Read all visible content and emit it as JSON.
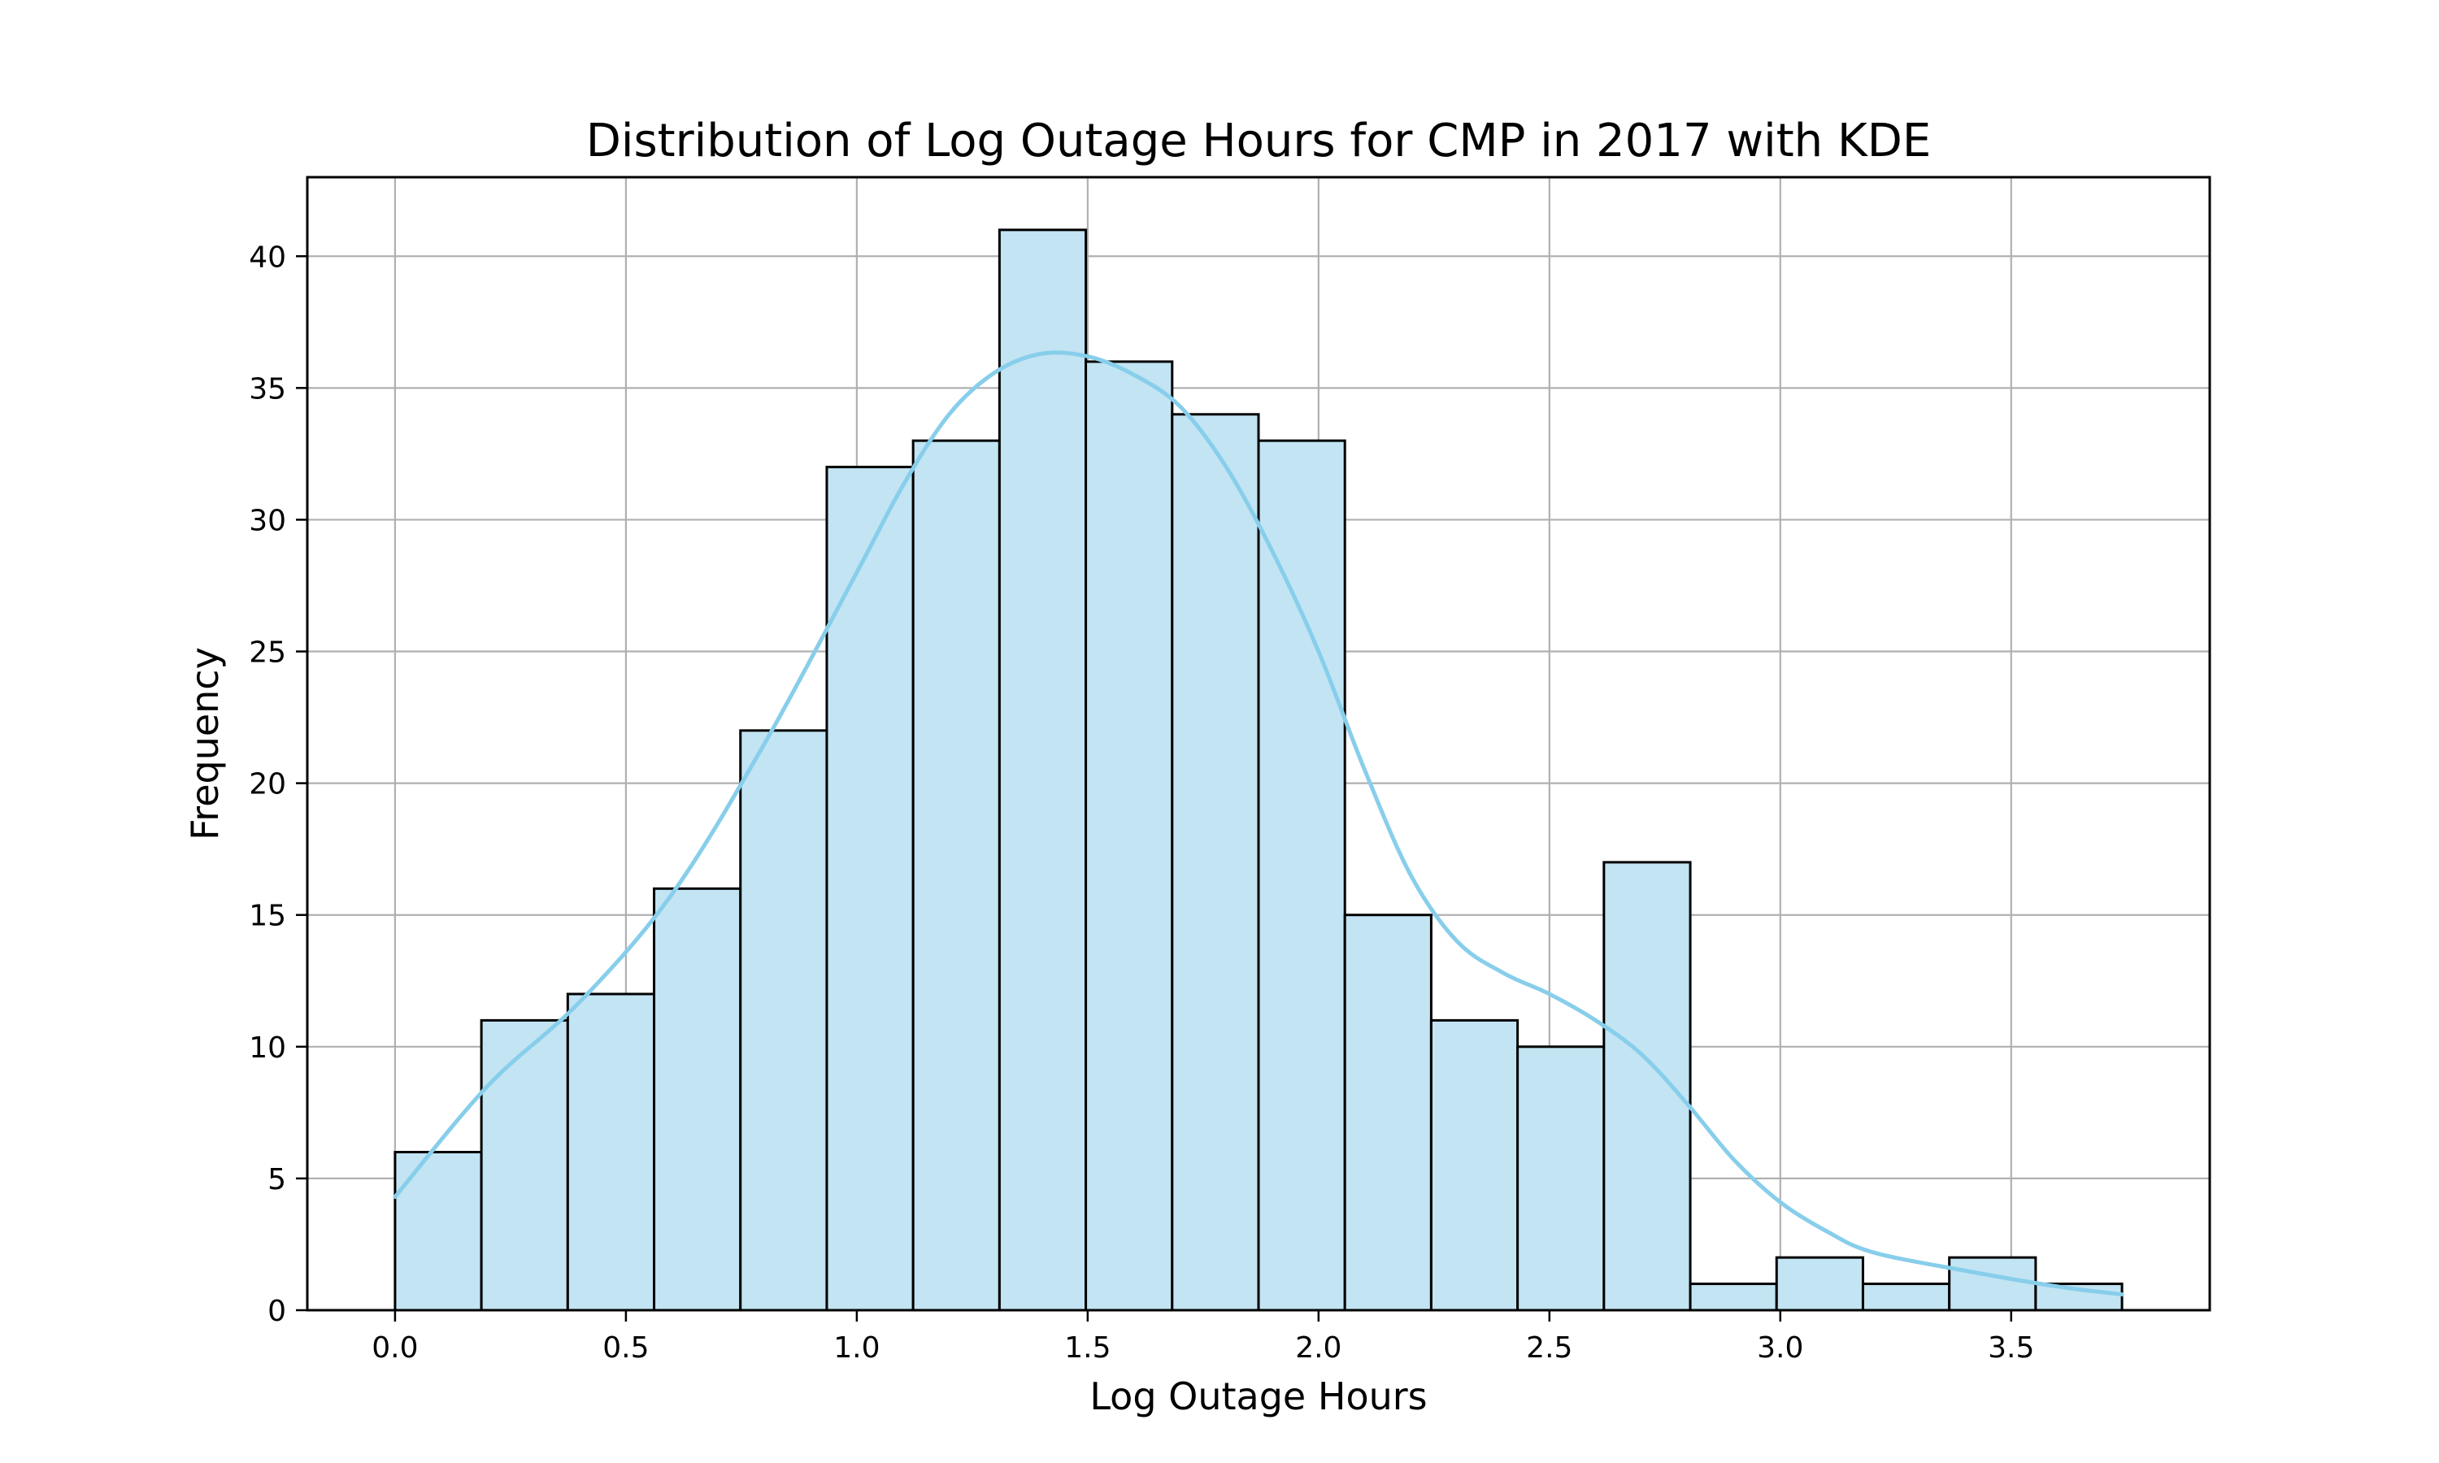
{
  "chart_data": {
    "type": "bar",
    "title": "Distribution of Log Outage Hours for CMP in 2017 with KDE",
    "xlabel": "Log Outage Hours",
    "ylabel": "Frequency",
    "xlim": [
      -0.19,
      3.93
    ],
    "ylim": [
      0,
      43
    ],
    "grid": true,
    "xticks": [
      "0.0",
      "0.5",
      "1.0",
      "1.5",
      "2.0",
      "2.5",
      "3.0",
      "3.5"
    ],
    "xtick_values": [
      0.0,
      0.5,
      1.0,
      1.5,
      2.0,
      2.5,
      3.0,
      3.5
    ],
    "yticks": [
      "0",
      "5",
      "10",
      "15",
      "20",
      "25",
      "30",
      "35",
      "40"
    ],
    "ytick_values": [
      0,
      5,
      10,
      15,
      20,
      25,
      30,
      35,
      40
    ],
    "bins": {
      "edges": [
        0.0,
        0.187,
        0.374,
        0.561,
        0.748,
        0.935,
        1.122,
        1.309,
        1.496,
        1.683,
        1.87,
        2.057,
        2.244,
        2.431,
        2.618,
        2.805,
        2.992,
        3.179,
        3.366,
        3.553,
        3.74
      ],
      "counts": [
        6,
        11,
        12,
        16,
        22,
        32,
        33,
        41,
        36,
        34,
        33,
        15,
        11,
        10,
        17,
        1,
        2,
        1,
        2,
        1
      ]
    },
    "kde": {
      "x": [
        0.0,
        0.2,
        0.4,
        0.6,
        0.8,
        1.0,
        1.1,
        1.2,
        1.3,
        1.4,
        1.5,
        1.6,
        1.7,
        1.8,
        1.9,
        2.0,
        2.1,
        2.2,
        2.3,
        2.4,
        2.5,
        2.6,
        2.7,
        2.8,
        2.9,
        3.0,
        3.1,
        3.2,
        3.4,
        3.6,
        3.74
      ],
      "y": [
        4.3,
        8.5,
        11.7,
        15.8,
        21.5,
        28.0,
        31.3,
        34.0,
        35.6,
        36.3,
        36.2,
        35.5,
        34.3,
        32.0,
        28.8,
        25.0,
        20.5,
        16.5,
        14.0,
        12.8,
        12.0,
        11.0,
        9.7,
        7.8,
        5.7,
        4.1,
        3.0,
        2.2,
        1.5,
        0.9,
        0.6
      ]
    },
    "colors": {
      "bar_fill": "#c2e4f3",
      "bar_edge": "#000000",
      "kde_line": "#87ceeb",
      "grid": "#b0b0b0"
    }
  }
}
